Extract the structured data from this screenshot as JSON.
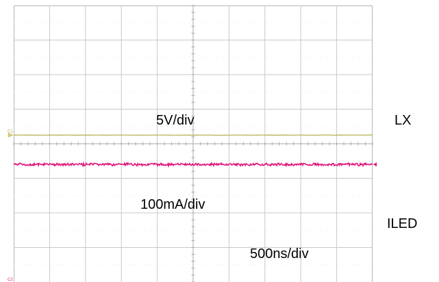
{
  "chart_data": {
    "type": "line",
    "grid": true,
    "grid_divisions": {
      "x": 10,
      "y": 8
    },
    "scales": {
      "lx_volts_per_div": "5V/div",
      "iled_current_per_div": "100mA/div",
      "time_per_div": "500ns/div"
    },
    "channel_markers": [
      "C1",
      "C2"
    ],
    "series": [
      {
        "name": "LX",
        "channel": "C1",
        "color": "#b5ad4f",
        "level_div": 0.25,
        "noise_div": 0.01
      },
      {
        "name": "ILED",
        "channel": "C2",
        "color": "#e0137a",
        "level_div": -0.6,
        "noise_div": 0.03
      }
    ]
  },
  "colors": {
    "grid": "#c8c8c8",
    "frame": "#b4b4b4",
    "center_axis": "#a9a9a9",
    "marker_fill": "#d6cf7a"
  }
}
